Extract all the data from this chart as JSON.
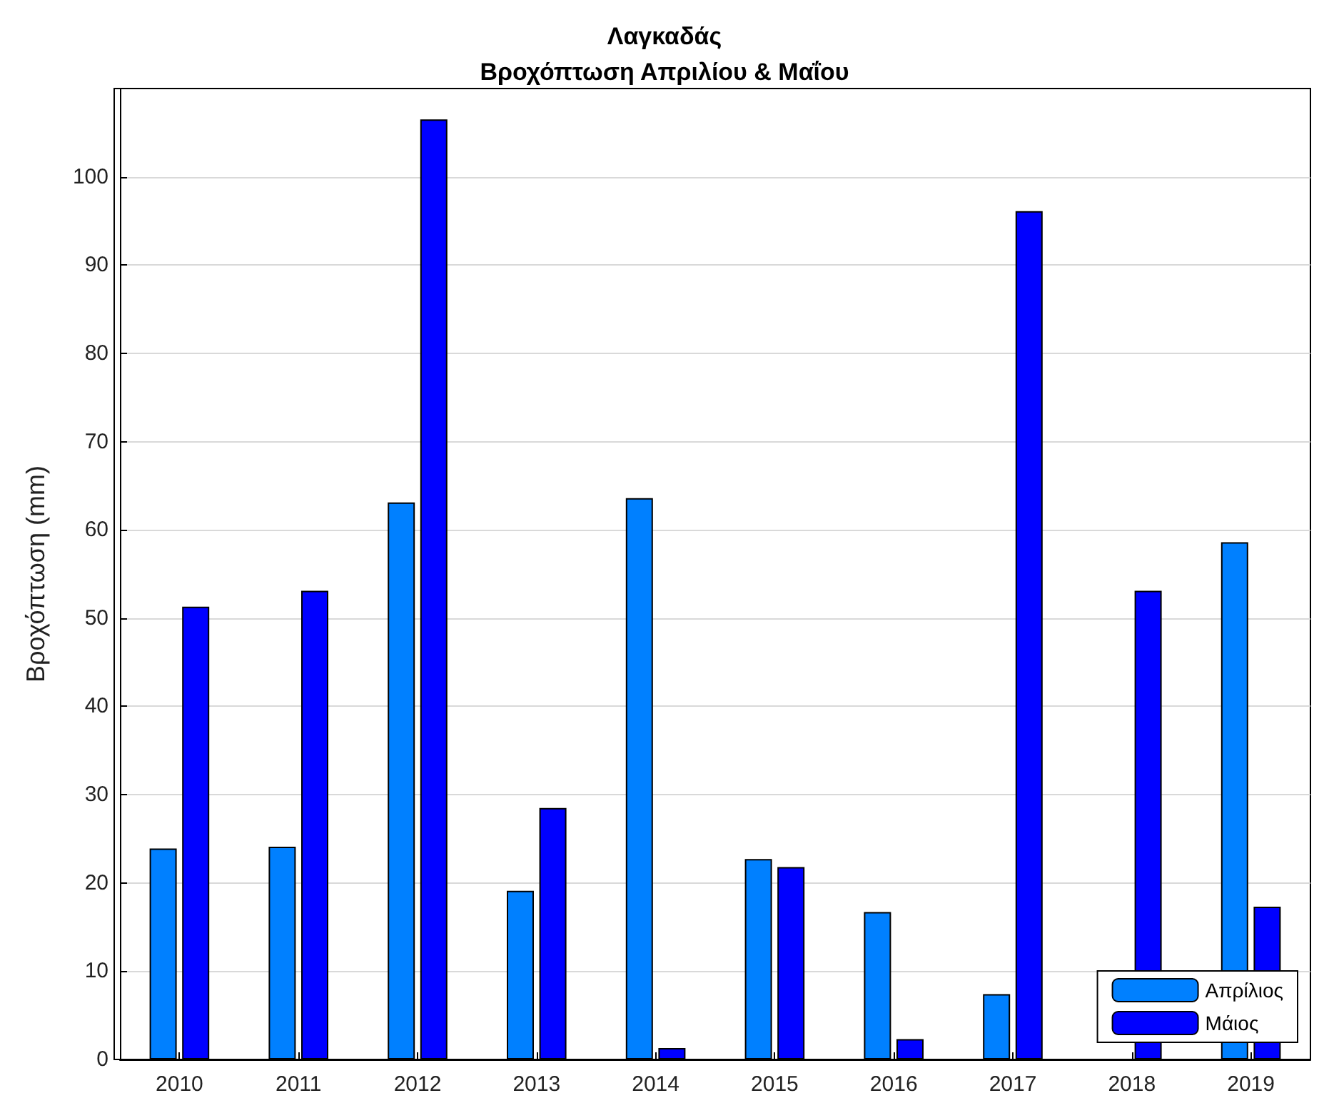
{
  "chart_data": {
    "type": "bar",
    "title": "Λαγκαδάς\nΒροχόπτωση Απριλίου & Μαΐου",
    "ylabel": "Βροχόπτωση (mm)",
    "categories": [
      "2010",
      "2011",
      "2012",
      "2013",
      "2014",
      "2015",
      "2016",
      "2017",
      "2018",
      "2019"
    ],
    "series": [
      {
        "name": "Απρίλιος",
        "color": "#0080ff",
        "values": [
          23.9,
          24.1,
          63.1,
          19.1,
          63.6,
          22.7,
          16.7,
          7.4,
          null,
          58.6
        ]
      },
      {
        "name": "Μάιος",
        "color": "#0000ff",
        "values": [
          51.3,
          53.1,
          106.5,
          28.5,
          1.3,
          21.8,
          2.3,
          96.1,
          53.1,
          17.3
        ]
      }
    ],
    "ylim": [
      0,
      110
    ],
    "yticks": [
      0,
      10,
      20,
      30,
      40,
      50,
      60,
      70,
      80,
      90,
      100
    ],
    "grid": "y",
    "legend": "bottom right"
  }
}
